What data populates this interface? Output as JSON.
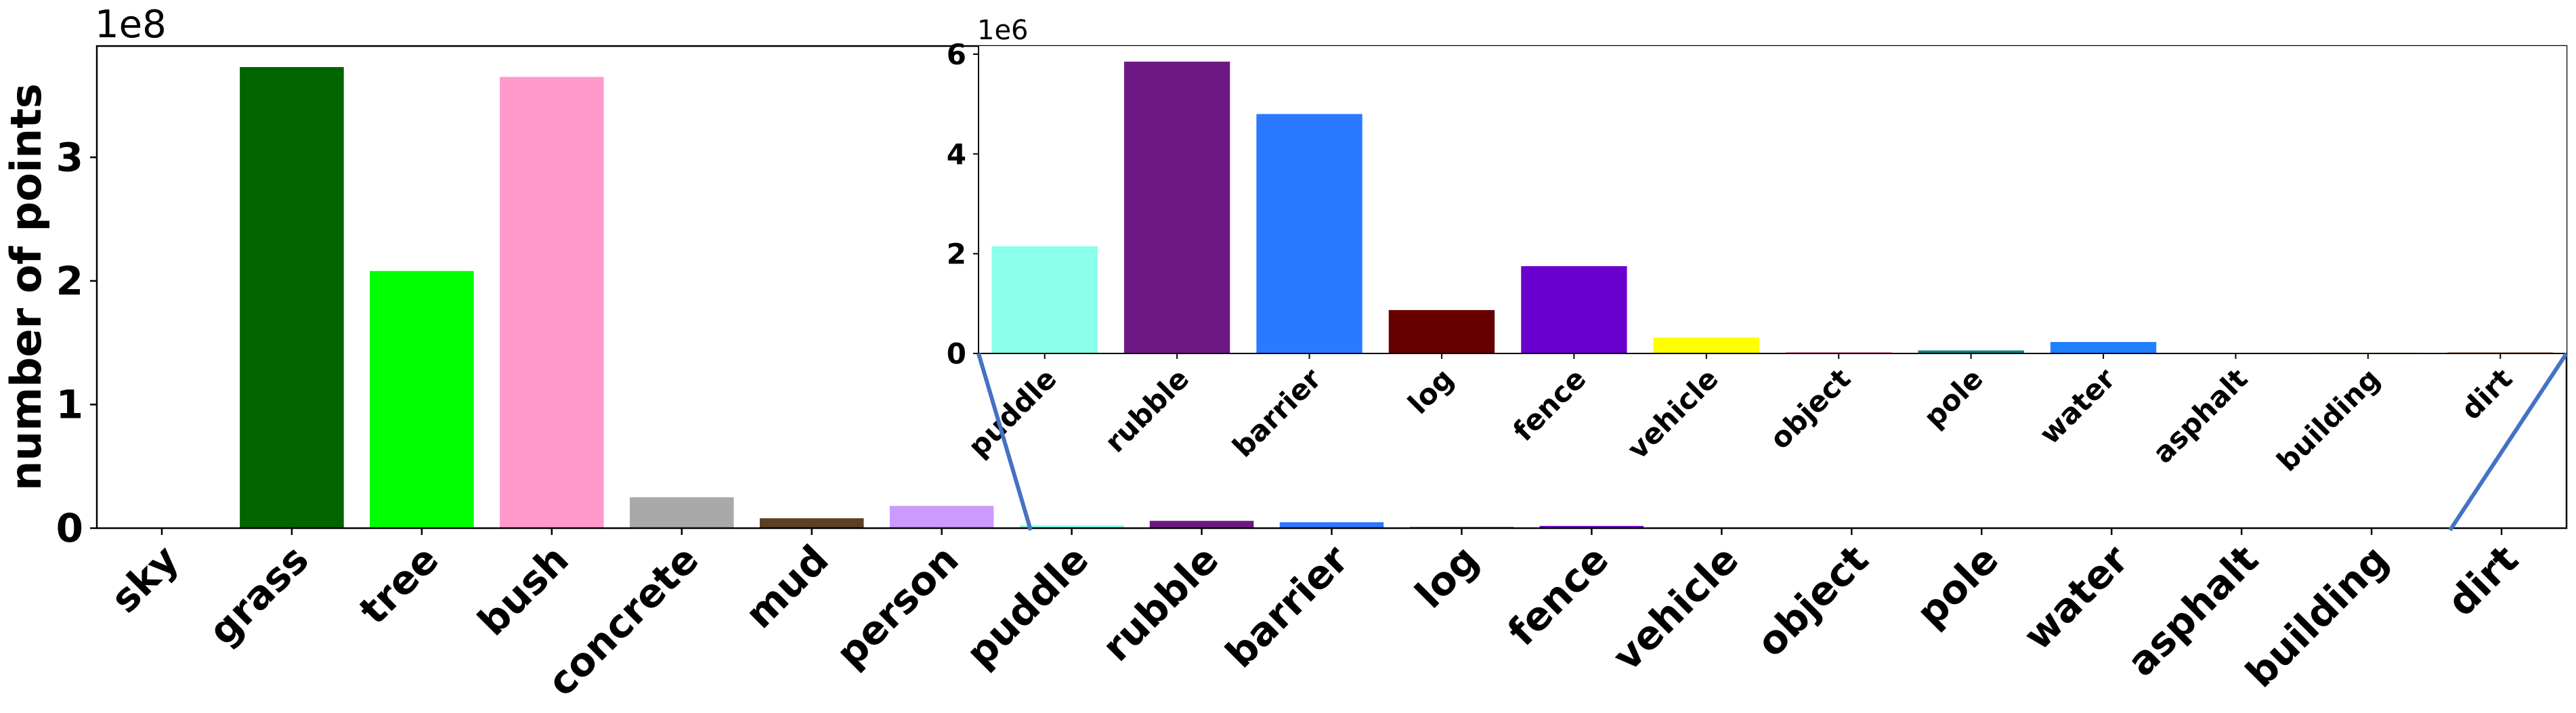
{
  "chart_data": [
    {
      "type": "bar",
      "role": "main",
      "title": "",
      "xlabel": "",
      "ylabel": "number of points",
      "y_offset_label": "1e8",
      "ylim": [
        0,
        390000000
      ],
      "yticks": [
        0,
        100000000,
        200000000,
        300000000
      ],
      "ytick_labels": [
        "0",
        "1",
        "2",
        "3"
      ],
      "categories": [
        "sky",
        "grass",
        "tree",
        "bush",
        "concrete",
        "mud",
        "person",
        "puddle",
        "rubble",
        "barrier",
        "log",
        "fence",
        "vehicle",
        "object",
        "pole",
        "water",
        "asphalt",
        "building",
        "dirt"
      ],
      "values": [
        0,
        373000000,
        208000000,
        365000000,
        25000000,
        8000000,
        18000000,
        2200000,
        5900000,
        4800000,
        900000,
        1800000,
        350000,
        20000,
        80000,
        250000,
        10000,
        15000,
        20000
      ],
      "colors": [
        "#87ceeb",
        "#006400",
        "#00ff00",
        "#ff99cc",
        "#a9a9a9",
        "#5c4026",
        "#cc99ff",
        "#8affea",
        "#6e1885",
        "#2a79ff",
        "#660000",
        "#6a00cf",
        "#ffff00",
        "#ff0080",
        "#008080",
        "#1f7fff",
        "#808080",
        "#ff8000",
        "#8b4513"
      ],
      "grid": false,
      "legend": "none"
    },
    {
      "type": "bar",
      "role": "inset-zoom",
      "title": "",
      "xlabel": "",
      "ylabel": "",
      "y_offset_label": "1e6",
      "ylim": [
        0,
        6000000
      ],
      "yticks": [
        0,
        2000000,
        4000000,
        6000000
      ],
      "ytick_labels": [
        "0",
        "2",
        "4",
        "6"
      ],
      "categories": [
        "puddle",
        "rubble",
        "barrier",
        "log",
        "fence",
        "vehicle",
        "object",
        "pole",
        "water",
        "asphalt",
        "building",
        "dirt"
      ],
      "values": [
        2150000,
        5850000,
        4800000,
        870000,
        1750000,
        320000,
        20000,
        60000,
        230000,
        10000,
        15000,
        20000
      ],
      "colors": [
        "#8affea",
        "#6e1885",
        "#2a79ff",
        "#660000",
        "#6a00cf",
        "#ffff00",
        "#ff0080",
        "#008080",
        "#1f7fff",
        "#808080",
        "#ff8000",
        "#8b4513"
      ],
      "grid": false,
      "legend": "none"
    }
  ]
}
